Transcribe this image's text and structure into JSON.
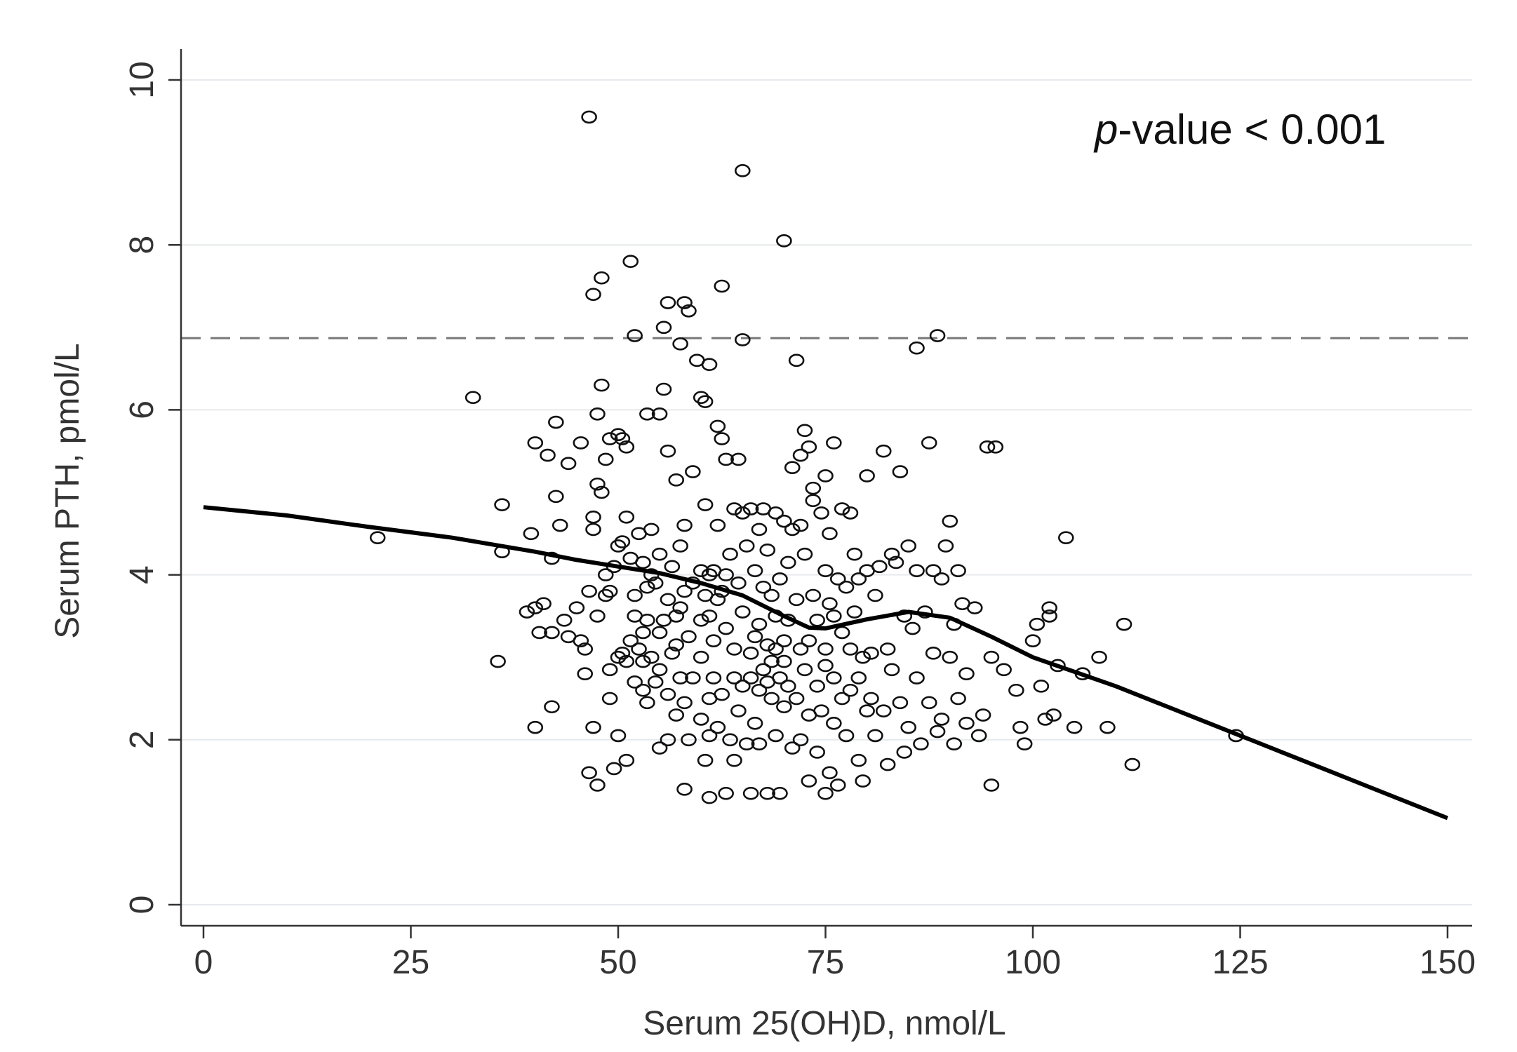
{
  "chart_data": {
    "type": "scatter",
    "xlabel": "Serum 25(OH)D, nmol/L",
    "ylabel": "Serum PTH, pmol/L",
    "xlim": [
      -3,
      152
    ],
    "ylim": [
      -0.25,
      10.1
    ],
    "xticks": [
      0,
      25,
      50,
      75,
      100,
      125,
      150
    ],
    "xtick_labels": [
      "0",
      "25",
      "50",
      "75",
      "100",
      "125",
      "150"
    ],
    "yticks": [
      0,
      2,
      4,
      6,
      8,
      10
    ],
    "ytick_labels": [
      "0",
      "2",
      "4",
      "6",
      "8",
      "10"
    ],
    "grid": "horizontal",
    "reference_line": {
      "y": 6.87,
      "style": "dashed"
    },
    "annotation": {
      "italic": "p",
      "text": "-value < 0.001"
    },
    "fit_line": {
      "x": [
        0,
        10,
        20,
        30,
        40,
        45,
        50,
        55,
        60,
        65,
        70,
        73,
        75,
        80,
        85,
        90,
        95,
        100,
        110,
        120,
        130,
        140,
        150
      ],
      "y": [
        4.82,
        4.72,
        4.58,
        4.45,
        4.28,
        4.18,
        4.1,
        4.02,
        3.9,
        3.75,
        3.5,
        3.36,
        3.35,
        3.46,
        3.55,
        3.48,
        3.25,
        3.0,
        2.65,
        2.25,
        1.85,
        1.45,
        1.05
      ]
    },
    "points": [
      [
        21,
        4.45
      ],
      [
        32.5,
        6.15
      ],
      [
        36,
        4.85
      ],
      [
        36,
        4.28
      ],
      [
        35.5,
        2.95
      ],
      [
        39,
        3.55
      ],
      [
        39.5,
        4.5
      ],
      [
        40,
        3.6
      ],
      [
        40,
        5.6
      ],
      [
        40,
        2.15
      ],
      [
        40.5,
        3.3
      ],
      [
        41,
        3.65
      ],
      [
        41.5,
        5.45
      ],
      [
        42,
        4.2
      ],
      [
        42,
        3.3
      ],
      [
        42,
        2.4
      ],
      [
        42.5,
        5.85
      ],
      [
        42.5,
        4.95
      ],
      [
        43,
        4.6
      ],
      [
        43.5,
        3.45
      ],
      [
        44,
        3.25
      ],
      [
        44,
        5.35
      ],
      [
        45,
        3.6
      ],
      [
        45.5,
        3.2
      ],
      [
        45.5,
        5.6
      ],
      [
        46,
        2.8
      ],
      [
        46,
        3.1
      ],
      [
        46.5,
        1.6
      ],
      [
        46.5,
        3.8
      ],
      [
        46.5,
        9.55
      ],
      [
        47,
        4.55
      ],
      [
        47,
        2.15
      ],
      [
        47,
        4.7
      ],
      [
        47,
        7.4
      ],
      [
        47.5,
        5.1
      ],
      [
        47.5,
        5.95
      ],
      [
        47.5,
        1.45
      ],
      [
        47.5,
        3.5
      ],
      [
        48,
        6.3
      ],
      [
        48,
        5.0
      ],
      [
        48,
        7.6
      ],
      [
        48.5,
        4.0
      ],
      [
        48.5,
        5.4
      ],
      [
        48.5,
        3.75
      ],
      [
        49,
        2.5
      ],
      [
        49,
        5.65
      ],
      [
        49,
        3.8
      ],
      [
        49,
        2.85
      ],
      [
        49.5,
        1.65
      ],
      [
        49.5,
        4.1
      ],
      [
        50,
        5.7
      ],
      [
        50,
        3.0
      ],
      [
        50,
        2.05
      ],
      [
        50,
        4.35
      ],
      [
        50.5,
        5.65
      ],
      [
        50.5,
        4.4
      ],
      [
        50.5,
        3.05
      ],
      [
        51,
        5.55
      ],
      [
        51,
        1.75
      ],
      [
        51,
        4.7
      ],
      [
        51,
        2.95
      ],
      [
        51.5,
        7.8
      ],
      [
        51.5,
        3.2
      ],
      [
        51.5,
        4.2
      ],
      [
        52,
        3.5
      ],
      [
        52,
        2.7
      ],
      [
        52,
        6.9
      ],
      [
        52,
        3.75
      ],
      [
        52.5,
        3.1
      ],
      [
        52.5,
        4.5
      ],
      [
        53,
        2.6
      ],
      [
        53,
        3.3
      ],
      [
        53,
        4.15
      ],
      [
        53,
        2.95
      ],
      [
        53.5,
        5.95
      ],
      [
        53.5,
        3.85
      ],
      [
        53.5,
        2.45
      ],
      [
        53.5,
        3.45
      ],
      [
        54,
        4.0
      ],
      [
        54,
        3.0
      ],
      [
        54,
        4.55
      ],
      [
        54.5,
        3.9
      ],
      [
        54.5,
        2.7
      ],
      [
        55,
        5.95
      ],
      [
        55,
        4.25
      ],
      [
        55,
        1.9
      ],
      [
        55,
        3.3
      ],
      [
        55,
        2.85
      ],
      [
        55.5,
        6.25
      ],
      [
        55.5,
        7.0
      ],
      [
        55.5,
        3.45
      ],
      [
        56,
        7.3
      ],
      [
        56,
        5.5
      ],
      [
        56,
        2.55
      ],
      [
        56,
        3.7
      ],
      [
        56,
        2.0
      ],
      [
        56.5,
        3.05
      ],
      [
        56.5,
        4.1
      ],
      [
        57,
        3.5
      ],
      [
        57,
        5.15
      ],
      [
        57,
        2.3
      ],
      [
        57,
        3.15
      ],
      [
        57.5,
        6.8
      ],
      [
        57.5,
        2.75
      ],
      [
        57.5,
        3.6
      ],
      [
        57.5,
        4.35
      ],
      [
        58,
        7.3
      ],
      [
        58,
        3.8
      ],
      [
        58,
        2.45
      ],
      [
        58,
        4.6
      ],
      [
        58,
        1.4
      ],
      [
        58.5,
        7.2
      ],
      [
        58.5,
        3.25
      ],
      [
        58.5,
        2.0
      ],
      [
        59,
        3.9
      ],
      [
        59,
        5.25
      ],
      [
        59,
        2.75
      ],
      [
        59.5,
        6.6
      ],
      [
        60,
        3.45
      ],
      [
        60,
        4.05
      ],
      [
        60,
        3.0
      ],
      [
        60,
        2.25
      ],
      [
        60,
        6.15
      ],
      [
        60.5,
        6.1
      ],
      [
        60.5,
        1.75
      ],
      [
        60.5,
        3.75
      ],
      [
        60.5,
        4.85
      ],
      [
        61,
        6.55
      ],
      [
        61,
        3.5
      ],
      [
        61,
        2.5
      ],
      [
        61,
        1.3
      ],
      [
        61,
        4.0
      ],
      [
        61,
        2.05
      ],
      [
        61.5,
        2.75
      ],
      [
        61.5,
        3.2
      ],
      [
        61.5,
        4.05
      ],
      [
        62,
        5.8
      ],
      [
        62,
        3.7
      ],
      [
        62,
        2.15
      ],
      [
        62,
        4.6
      ],
      [
        62.5,
        5.65
      ],
      [
        62.5,
        7.5
      ],
      [
        62.5,
        3.8
      ],
      [
        62.5,
        2.55
      ],
      [
        63,
        4.0
      ],
      [
        63,
        5.4
      ],
      [
        63,
        3.35
      ],
      [
        63,
        1.35
      ],
      [
        63.5,
        2.0
      ],
      [
        63.5,
        4.25
      ],
      [
        64,
        4.8
      ],
      [
        64,
        3.1
      ],
      [
        64,
        1.75
      ],
      [
        64,
        2.75
      ],
      [
        64.5,
        3.9
      ],
      [
        64.5,
        5.4
      ],
      [
        64.5,
        2.35
      ],
      [
        65,
        8.9
      ],
      [
        65,
        6.85
      ],
      [
        65,
        4.75
      ],
      [
        65,
        3.55
      ],
      [
        65,
        2.65
      ],
      [
        65.5,
        4.35
      ],
      [
        65.5,
        1.95
      ],
      [
        66,
        4.8
      ],
      [
        66,
        3.05
      ],
      [
        66,
        2.75
      ],
      [
        66,
        1.35
      ],
      [
        66.5,
        4.05
      ],
      [
        66.5,
        2.2
      ],
      [
        66.5,
        3.25
      ],
      [
        67,
        4.55
      ],
      [
        67,
        3.4
      ],
      [
        67,
        2.6
      ],
      [
        67,
        1.95
      ],
      [
        67.5,
        3.85
      ],
      [
        67.5,
        2.85
      ],
      [
        67.5,
        4.8
      ],
      [
        68,
        3.15
      ],
      [
        68,
        2.7
      ],
      [
        68,
        4.3
      ],
      [
        68,
        1.35
      ],
      [
        68.5,
        2.95
      ],
      [
        68.5,
        3.75
      ],
      [
        68.5,
        2.5
      ],
      [
        69,
        3.5
      ],
      [
        69,
        2.05
      ],
      [
        69,
        4.75
      ],
      [
        69,
        3.1
      ],
      [
        69.5,
        2.75
      ],
      [
        69.5,
        1.35
      ],
      [
        69.5,
        3.95
      ],
      [
        70,
        8.05
      ],
      [
        70,
        4.65
      ],
      [
        70,
        3.2
      ],
      [
        70,
        2.4
      ],
      [
        70,
        2.95
      ],
      [
        70.5,
        4.15
      ],
      [
        70.5,
        2.65
      ],
      [
        70.5,
        3.45
      ],
      [
        71,
        5.3
      ],
      [
        71,
        1.9
      ],
      [
        71,
        4.55
      ],
      [
        71.5,
        6.6
      ],
      [
        71.5,
        2.5
      ],
      [
        71.5,
        3.7
      ],
      [
        72,
        5.45
      ],
      [
        72,
        4.6
      ],
      [
        72,
        3.1
      ],
      [
        72,
        2.0
      ],
      [
        72.5,
        5.75
      ],
      [
        72.5,
        2.85
      ],
      [
        72.5,
        4.25
      ],
      [
        73,
        5.55
      ],
      [
        73,
        3.2
      ],
      [
        73,
        1.5
      ],
      [
        73,
        2.3
      ],
      [
        73.5,
        5.05
      ],
      [
        73.5,
        4.9
      ],
      [
        73.5,
        3.75
      ],
      [
        74,
        2.65
      ],
      [
        74,
        3.45
      ],
      [
        74,
        1.85
      ],
      [
        74.5,
        4.75
      ],
      [
        74.5,
        2.35
      ],
      [
        75,
        5.2
      ],
      [
        75,
        4.05
      ],
      [
        75,
        3.1
      ],
      [
        75,
        1.35
      ],
      [
        75,
        2.9
      ],
      [
        75.5,
        1.6
      ],
      [
        75.5,
        3.65
      ],
      [
        75.5,
        4.5
      ],
      [
        76,
        5.6
      ],
      [
        76,
        2.2
      ],
      [
        76,
        3.5
      ],
      [
        76,
        2.75
      ],
      [
        76.5,
        3.95
      ],
      [
        76.5,
        1.45
      ],
      [
        77,
        4.8
      ],
      [
        77,
        3.3
      ],
      [
        77,
        2.5
      ],
      [
        77.5,
        3.85
      ],
      [
        77.5,
        2.05
      ],
      [
        78,
        4.75
      ],
      [
        78,
        3.1
      ],
      [
        78,
        2.6
      ],
      [
        78.5,
        4.25
      ],
      [
        78.5,
        3.55
      ],
      [
        79,
        2.75
      ],
      [
        79,
        1.75
      ],
      [
        79,
        3.95
      ],
      [
        79.5,
        3.0
      ],
      [
        79.5,
        1.5
      ],
      [
        80,
        5.2
      ],
      [
        80,
        4.05
      ],
      [
        80,
        2.35
      ],
      [
        80.5,
        3.05
      ],
      [
        80.5,
        2.5
      ],
      [
        81,
        3.75
      ],
      [
        81,
        2.05
      ],
      [
        81.5,
        4.1
      ],
      [
        82,
        5.5
      ],
      [
        82,
        2.35
      ],
      [
        82.5,
        3.1
      ],
      [
        82.5,
        1.7
      ],
      [
        83,
        4.25
      ],
      [
        83,
        2.85
      ],
      [
        83.5,
        4.15
      ],
      [
        84,
        5.25
      ],
      [
        84,
        2.45
      ],
      [
        84.5,
        3.5
      ],
      [
        84.5,
        1.85
      ],
      [
        85,
        4.35
      ],
      [
        85,
        2.15
      ],
      [
        85.5,
        3.35
      ],
      [
        86,
        6.75
      ],
      [
        86,
        4.05
      ],
      [
        86,
        2.75
      ],
      [
        86.5,
        1.95
      ],
      [
        87,
        3.55
      ],
      [
        87.5,
        5.6
      ],
      [
        87.5,
        2.45
      ],
      [
        88,
        4.05
      ],
      [
        88,
        3.05
      ],
      [
        88.5,
        6.9
      ],
      [
        88.5,
        2.1
      ],
      [
        89,
        3.95
      ],
      [
        89,
        2.25
      ],
      [
        89.5,
        4.35
      ],
      [
        90,
        3.0
      ],
      [
        90,
        4.65
      ],
      [
        90.5,
        1.95
      ],
      [
        90.5,
        3.4
      ],
      [
        91,
        2.5
      ],
      [
        91,
        4.05
      ],
      [
        91.5,
        3.65
      ],
      [
        92,
        2.2
      ],
      [
        92,
        2.8
      ],
      [
        93,
        3.6
      ],
      [
        93.5,
        2.05
      ],
      [
        94,
        2.3
      ],
      [
        94.5,
        5.55
      ],
      [
        95,
        3.0
      ],
      [
        95,
        1.45
      ],
      [
        95.5,
        5.55
      ],
      [
        96.5,
        2.85
      ],
      [
        98,
        2.6
      ],
      [
        98.5,
        2.15
      ],
      [
        99,
        1.95
      ],
      [
        100,
        3.2
      ],
      [
        100.5,
        3.4
      ],
      [
        101,
        2.65
      ],
      [
        101.5,
        2.25
      ],
      [
        102,
        3.5
      ],
      [
        102,
        3.6
      ],
      [
        102.5,
        2.3
      ],
      [
        103,
        2.9
      ],
      [
        104,
        4.45
      ],
      [
        105,
        2.15
      ],
      [
        106,
        2.8
      ],
      [
        108,
        3.0
      ],
      [
        109,
        2.15
      ],
      [
        111,
        3.4
      ],
      [
        112,
        1.7
      ],
      [
        124.5,
        2.05
      ]
    ]
  }
}
